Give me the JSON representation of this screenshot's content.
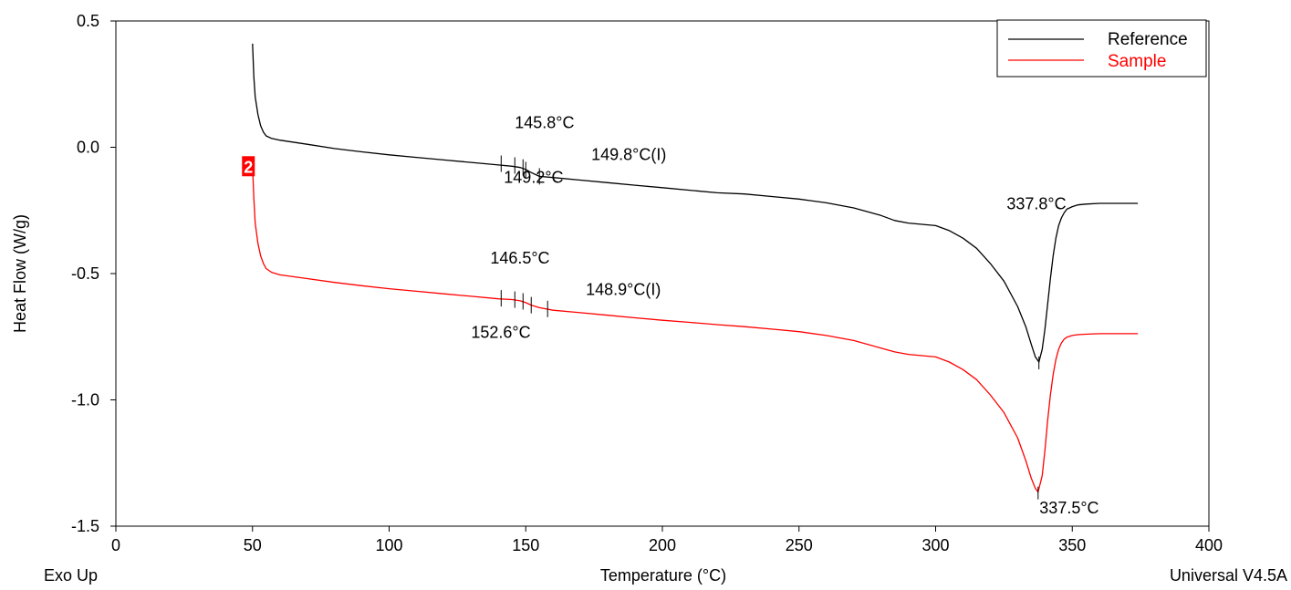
{
  "chart_data": {
    "type": "line",
    "xlabel": "Temperature (°C)",
    "ylabel": "Heat Flow (W/g)",
    "xlim": [
      0,
      400
    ],
    "ylim": [
      -1.5,
      0.5
    ],
    "x_ticks": [
      0,
      50,
      100,
      150,
      200,
      250,
      300,
      350,
      400
    ],
    "x_tick_labels": [
      "0",
      "50",
      "100",
      "150",
      "200",
      "250",
      "300",
      "350",
      "400"
    ],
    "y_ticks": [
      0.5,
      0.0,
      -0.5,
      -1.0,
      -1.5
    ],
    "y_tick_labels": [
      "0.5",
      "0.0",
      "-0.5",
      "-1.0",
      "-1.5"
    ],
    "grid": false,
    "legend": {
      "placement": "top-right",
      "entries": [
        "Reference",
        "Sample"
      ]
    },
    "series": [
      {
        "name": "Reference",
        "color": "#000000",
        "points": [
          [
            50.0,
            0.41
          ],
          [
            50.5,
            0.28
          ],
          [
            51,
            0.2
          ],
          [
            52,
            0.13
          ],
          [
            53,
            0.085
          ],
          [
            54,
            0.06
          ],
          [
            55,
            0.045
          ],
          [
            57,
            0.035
          ],
          [
            60,
            0.028
          ],
          [
            70,
            0.012
          ],
          [
            80,
            -0.005
          ],
          [
            90,
            -0.018
          ],
          [
            100,
            -0.03
          ],
          [
            110,
            -0.04
          ],
          [
            120,
            -0.05
          ],
          [
            130,
            -0.06
          ],
          [
            140,
            -0.07
          ],
          [
            145,
            -0.075
          ],
          [
            148,
            -0.08
          ],
          [
            150,
            -0.088
          ],
          [
            152,
            -0.1
          ],
          [
            155,
            -0.115
          ],
          [
            160,
            -0.12
          ],
          [
            170,
            -0.13
          ],
          [
            180,
            -0.14
          ],
          [
            190,
            -0.15
          ],
          [
            200,
            -0.16
          ],
          [
            210,
            -0.17
          ],
          [
            220,
            -0.18
          ],
          [
            230,
            -0.185
          ],
          [
            240,
            -0.195
          ],
          [
            250,
            -0.205
          ],
          [
            260,
            -0.22
          ],
          [
            270,
            -0.24
          ],
          [
            280,
            -0.27
          ],
          [
            285,
            -0.29
          ],
          [
            290,
            -0.3
          ],
          [
            295,
            -0.305
          ],
          [
            300,
            -0.31
          ],
          [
            305,
            -0.33
          ],
          [
            310,
            -0.36
          ],
          [
            315,
            -0.4
          ],
          [
            320,
            -0.46
          ],
          [
            325,
            -0.53
          ],
          [
            330,
            -0.63
          ],
          [
            333,
            -0.71
          ],
          [
            335,
            -0.78
          ],
          [
            336.5,
            -0.83
          ],
          [
            337.8,
            -0.85
          ],
          [
            339,
            -0.8
          ],
          [
            340,
            -0.72
          ],
          [
            341,
            -0.62
          ],
          [
            342,
            -0.52
          ],
          [
            343,
            -0.43
          ],
          [
            344,
            -0.36
          ],
          [
            345,
            -0.31
          ],
          [
            346,
            -0.28
          ],
          [
            347,
            -0.26
          ],
          [
            348,
            -0.245
          ],
          [
            350,
            -0.235
          ],
          [
            352,
            -0.228
          ],
          [
            355,
            -0.225
          ],
          [
            360,
            -0.222
          ],
          [
            374,
            -0.222
          ]
        ]
      },
      {
        "name": "Sample",
        "color": "#ff0000",
        "points": [
          [
            50.0,
            -0.075
          ],
          [
            50.5,
            -0.2
          ],
          [
            51,
            -0.3
          ],
          [
            52,
            -0.38
          ],
          [
            53,
            -0.43
          ],
          [
            54,
            -0.46
          ],
          [
            55,
            -0.48
          ],
          [
            57,
            -0.495
          ],
          [
            60,
            -0.505
          ],
          [
            70,
            -0.52
          ],
          [
            80,
            -0.535
          ],
          [
            90,
            -0.548
          ],
          [
            100,
            -0.56
          ],
          [
            110,
            -0.57
          ],
          [
            120,
            -0.58
          ],
          [
            130,
            -0.59
          ],
          [
            140,
            -0.6
          ],
          [
            145,
            -0.603
          ],
          [
            148,
            -0.608
          ],
          [
            150,
            -0.615
          ],
          [
            152,
            -0.625
          ],
          [
            155,
            -0.635
          ],
          [
            160,
            -0.645
          ],
          [
            170,
            -0.655
          ],
          [
            180,
            -0.665
          ],
          [
            190,
            -0.675
          ],
          [
            200,
            -0.685
          ],
          [
            210,
            -0.693
          ],
          [
            220,
            -0.702
          ],
          [
            230,
            -0.71
          ],
          [
            240,
            -0.72
          ],
          [
            250,
            -0.73
          ],
          [
            260,
            -0.745
          ],
          [
            270,
            -0.765
          ],
          [
            280,
            -0.795
          ],
          [
            285,
            -0.81
          ],
          [
            290,
            -0.82
          ],
          [
            295,
            -0.825
          ],
          [
            300,
            -0.83
          ],
          [
            305,
            -0.85
          ],
          [
            310,
            -0.88
          ],
          [
            315,
            -0.92
          ],
          [
            320,
            -0.98
          ],
          [
            325,
            -1.05
          ],
          [
            330,
            -1.15
          ],
          [
            333,
            -1.24
          ],
          [
            335,
            -1.31
          ],
          [
            336.5,
            -1.35
          ],
          [
            337.5,
            -1.365
          ],
          [
            339,
            -1.3
          ],
          [
            340,
            -1.2
          ],
          [
            341,
            -1.08
          ],
          [
            342,
            -0.98
          ],
          [
            343,
            -0.9
          ],
          [
            344,
            -0.84
          ],
          [
            345,
            -0.8
          ],
          [
            346,
            -0.775
          ],
          [
            347,
            -0.76
          ],
          [
            348,
            -0.752
          ],
          [
            350,
            -0.745
          ],
          [
            352,
            -0.742
          ],
          [
            355,
            -0.74
          ],
          [
            360,
            -0.738
          ],
          [
            374,
            -0.738
          ]
        ]
      }
    ],
    "annotation_marks": [
      {
        "series": "Reference",
        "points": [
          [
            141,
            -0.065
          ],
          [
            146,
            -0.072
          ],
          [
            149,
            -0.08
          ],
          [
            150,
            -0.09
          ],
          [
            155,
            -0.115
          ]
        ]
      },
      {
        "series": "Sample",
        "points": [
          [
            141,
            -0.598
          ],
          [
            146,
            -0.603
          ],
          [
            149,
            -0.61
          ],
          [
            152,
            -0.625
          ],
          [
            158,
            -0.64
          ]
        ]
      }
    ],
    "annotations": [
      {
        "text": "145.8°C",
        "series": "Reference",
        "at": [
          146,
          0.075
        ]
      },
      {
        "text": "149.8°C(I)",
        "series": "Reference",
        "at": [
          174,
          -0.05
        ]
      },
      {
        "text": "149.2°C",
        "series": "Reference",
        "at": [
          142,
          -0.14
        ]
      },
      {
        "text": "337.8°C",
        "series": "Reference",
        "at": [
          326,
          -0.245
        ]
      },
      {
        "text": "146.5°C",
        "series": "Sample",
        "at": [
          137,
          -0.46
        ]
      },
      {
        "text": "148.9°C(I)",
        "series": "Sample",
        "at": [
          172,
          -0.585
        ]
      },
      {
        "text": "152.6°C",
        "series": "Sample",
        "at": [
          130,
          -0.755
        ]
      },
      {
        "text": "337.5°C",
        "series": "Sample",
        "at": [
          338,
          -1.45
        ]
      }
    ],
    "curve_marker": {
      "text": "2",
      "at": [
        48.5,
        -0.075
      ]
    }
  },
  "footer": {
    "left": "Exo Up",
    "right": "Universal V4.5A"
  }
}
